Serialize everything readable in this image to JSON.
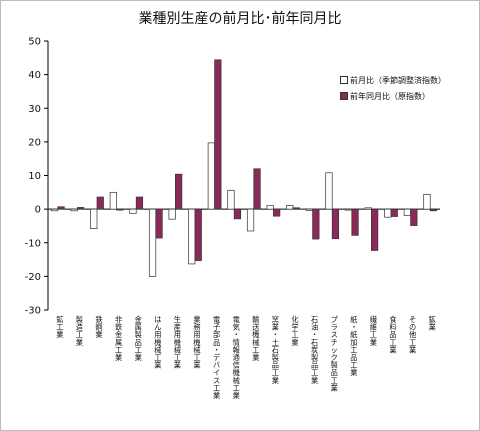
{
  "colors": {
    "prev_month_fill": "#ffffff",
    "yoy_fill": "#8b2a5a",
    "bar_stroke": "#333333",
    "axis": "#000000"
  },
  "chart_data": {
    "type": "bar",
    "title": "業種別生産の前月比･前年同月比",
    "ylim": [
      -30,
      50
    ],
    "yticks": [
      -30,
      -20,
      -10,
      0,
      10,
      20,
      30,
      40,
      50
    ],
    "legend_position": "right",
    "categories": [
      "鉱工業",
      "製造工業",
      "鉄鋼業",
      "非鉄金属工業",
      "金属製品工業",
      "はん用機械工業",
      "生産用機械工業",
      "業務用機械工業",
      "電子部品・デバイス工業",
      "電気・情報通信機械工業",
      "輸送機械工業",
      "窯業・土石製品工業",
      "化学工業",
      "石油・石炭製品工業",
      "プラスチック製品工業",
      "紙・紙加工品工業",
      "繊維工業",
      "食料品工業",
      "その他工業",
      "鉱業"
    ],
    "series": [
      {
        "name": "前月比（季節調整済指数）",
        "values": [
          -0.5,
          -0.5,
          -5.8,
          5.0,
          -1.3,
          -20.0,
          -3.0,
          -16.3,
          19.7,
          5.6,
          -6.5,
          1.1,
          1.1,
          -0.4,
          10.8,
          -0.3,
          0.4,
          -2.4,
          -1.9,
          4.4
        ]
      },
      {
        "name": "前年同月比（原指数）",
        "values": [
          0.7,
          0.5,
          3.6,
          -0.3,
          3.6,
          -8.6,
          10.4,
          -15.3,
          44.4,
          -2.9,
          12.0,
          -2.1,
          0.4,
          -8.9,
          -8.8,
          -7.8,
          -12.3,
          -2.2,
          -4.9,
          -0.5
        ]
      }
    ]
  }
}
